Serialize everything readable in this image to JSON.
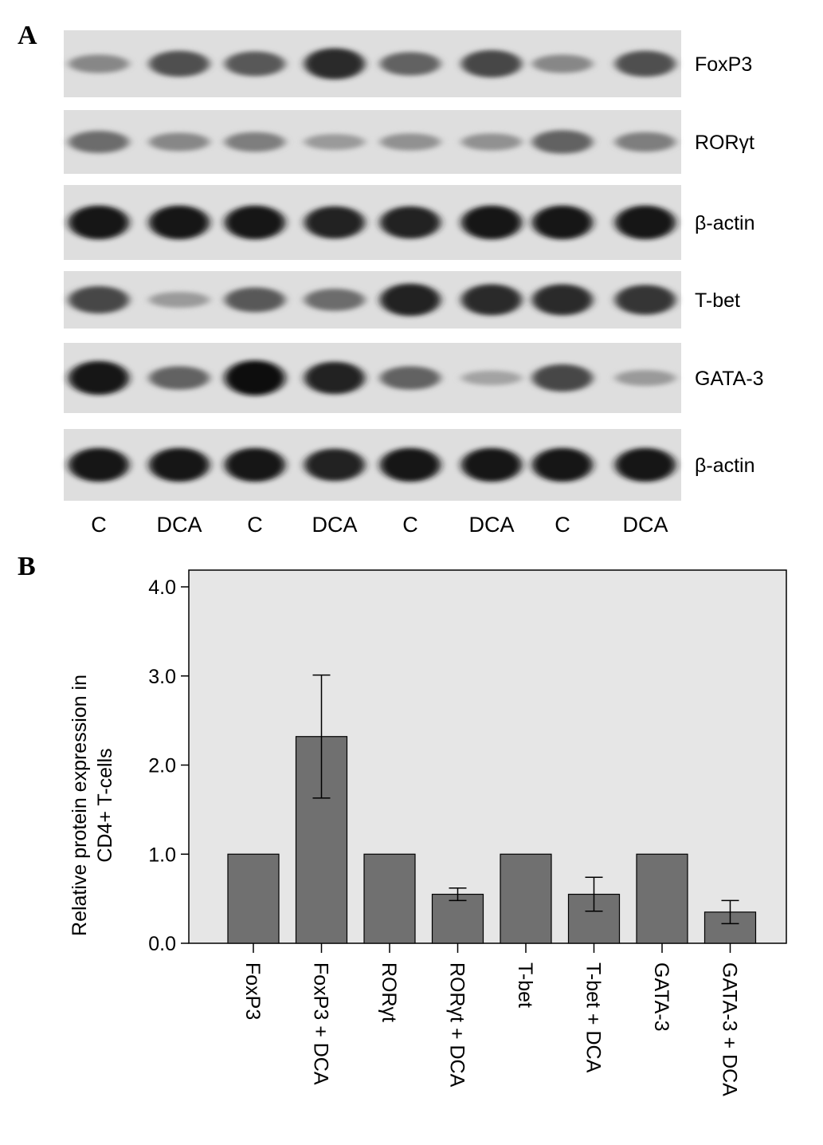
{
  "panels": {
    "a": "A",
    "b": "B"
  },
  "blot": {
    "lanes": [
      "C",
      "DCA",
      "C",
      "DCA",
      "C",
      "DCA",
      "C",
      "DCA"
    ],
    "rows": [
      {
        "label": "FoxP3",
        "intensity": [
          0.35,
          0.65,
          0.6,
          0.85,
          0.55,
          0.7,
          0.35,
          0.65
        ]
      },
      {
        "label": "RORγt",
        "intensity": [
          0.5,
          0.35,
          0.4,
          0.25,
          0.3,
          0.3,
          0.55,
          0.4
        ]
      },
      {
        "label": "β-actin",
        "intensity": [
          0.95,
          0.95,
          0.95,
          0.9,
          0.9,
          0.95,
          0.95,
          0.95
        ]
      },
      {
        "label": "T-bet",
        "intensity": [
          0.7,
          0.25,
          0.6,
          0.5,
          0.9,
          0.85,
          0.85,
          0.8
        ]
      },
      {
        "label": "GATA-3",
        "intensity": [
          0.95,
          0.55,
          1.0,
          0.9,
          0.55,
          0.2,
          0.7,
          0.25
        ]
      },
      {
        "label": "β-actin",
        "intensity": [
          0.95,
          0.95,
          0.95,
          0.9,
          0.95,
          0.95,
          0.95,
          0.95
        ]
      }
    ]
  },
  "chart_data": {
    "type": "bar",
    "ylabel": [
      "Relative protein expression in",
      "CD4+ T-cells"
    ],
    "xlabel": "",
    "ylim": [
      0,
      4.0
    ],
    "yticks": [
      "0.0",
      "1.0",
      "2.0",
      "3.0",
      "4.0"
    ],
    "categories": [
      "FoxP3",
      "FoxP3 + DCA",
      "RORγt",
      "RORγt + DCA",
      "T-bet",
      "T-bet + DCA",
      "GATA-3",
      "GATA-3 + DCA"
    ],
    "values": [
      1.0,
      2.32,
      1.0,
      0.55,
      1.0,
      0.55,
      1.0,
      0.35
    ],
    "errors": [
      0.0,
      0.69,
      0.0,
      0.07,
      0.0,
      0.19,
      0.0,
      0.13
    ],
    "bar_color": "#707070",
    "plot_bg": "#e6e6e6",
    "grid": false
  }
}
